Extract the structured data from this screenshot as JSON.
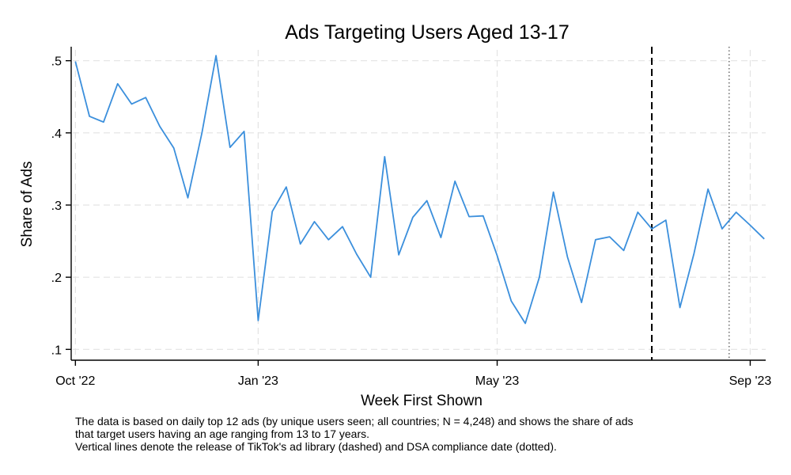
{
  "chart_data": {
    "type": "line",
    "title": "Ads Targeting Users Aged 13-17",
    "xlabel": "Week First Shown",
    "ylabel": "Share of Ads",
    "ylim": [
      0.085,
      0.515
    ],
    "xlim": [
      -0.3,
      49.1
    ],
    "y_ticks": [
      {
        "value": 0.1,
        "label": ".1"
      },
      {
        "value": 0.2,
        "label": ".2"
      },
      {
        "value": 0.3,
        "label": ".3"
      },
      {
        "value": 0.4,
        "label": ".4"
      },
      {
        "value": 0.5,
        "label": ".5"
      }
    ],
    "x_ticks": [
      {
        "value": 0,
        "label": "Oct '22"
      },
      {
        "value": 13,
        "label": "Jan '23"
      },
      {
        "value": 30,
        "label": "May '23"
      },
      {
        "value": 48,
        "label": "Sep '23"
      }
    ],
    "series": [
      {
        "name": "Share of Ads",
        "color": "#3b8fdc",
        "x": [
          0,
          1,
          2,
          3,
          4,
          5,
          6,
          7,
          8,
          9,
          10,
          11,
          12,
          13,
          14,
          15,
          16,
          17,
          18,
          19,
          20,
          21,
          22,
          23,
          24,
          25,
          26,
          27,
          28,
          29,
          30,
          31,
          32,
          33,
          34,
          35,
          36,
          37,
          38,
          39,
          40,
          41,
          42,
          43,
          44,
          45,
          46,
          47,
          48,
          49
        ],
        "values": [
          0.499,
          0.423,
          0.415,
          0.468,
          0.44,
          0.449,
          0.409,
          0.379,
          0.31,
          0.4,
          0.507,
          0.38,
          0.402,
          0.14,
          0.291,
          0.325,
          0.246,
          0.277,
          0.252,
          0.27,
          0.232,
          0.2,
          0.367,
          0.231,
          0.283,
          0.306,
          0.255,
          0.333,
          0.284,
          0.285,
          0.23,
          0.167,
          0.136,
          0.2,
          0.318,
          0.228,
          0.165,
          0.252,
          0.256,
          0.237,
          0.29,
          0.267,
          0.279,
          0.158,
          0.233,
          0.322,
          0.267,
          0.29,
          0.272,
          0.253
        ]
      }
    ],
    "reference_lines": [
      {
        "name": "TikTok ad library release",
        "x": 41,
        "style": "dashed",
        "color": "#000000"
      },
      {
        "name": "DSA compliance date",
        "x": 46.5,
        "style": "dotted",
        "color": "#555555"
      }
    ],
    "grid": true,
    "legend": "none"
  },
  "notes": [
    "The data is based on daily top 12 ads (by unique users seen; all countries; N = 4,248) and shows the share of ads",
    "that target users having an age ranging from 13 to 17 years.",
    "Vertical lines denote the release of TikTok's ad library (dashed) and DSA compliance date (dotted)."
  ]
}
